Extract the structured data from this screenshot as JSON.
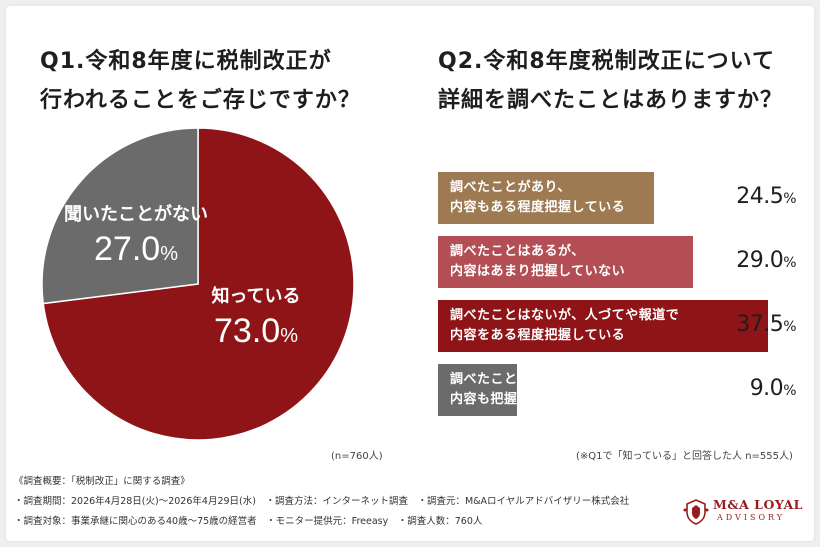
{
  "colors": {
    "dark_red": "#8f1417",
    "mid_red": "#b34e55",
    "gold": "#9e7a52",
    "grey": "#6b6b6b",
    "brand": "#9b1c1f"
  },
  "chart_data": [
    {
      "type": "pie",
      "title": "Q1.令和8年度に税制改正が\n行われることをご存じですか？",
      "slices": [
        {
          "label": "知っている",
          "value": 73.0,
          "value_text": "73.0",
          "unit": "%",
          "color": "#8f1417"
        },
        {
          "label": "聞いたことがない",
          "value": 27.0,
          "value_text": "27.0",
          "unit": "%",
          "color": "#6b6b6b"
        }
      ],
      "note": "(n=760人)"
    },
    {
      "type": "bar",
      "title": "Q2.令和8年度税制改正について\n詳細を調べたことはありますか？",
      "categories": [
        "調べたことがあり、\n内容もある程度把握している",
        "調べたことはあるが、\n内容はあまり把握していない",
        "調べたことはないが、人づてや報道で\n内容をある程度把握している",
        "調べたことはなく、\n内容も把握していない"
      ],
      "values": [
        24.5,
        29.0,
        37.5,
        9.0
      ],
      "value_texts": [
        "24.5",
        "29.0",
        "37.5",
        "9.0"
      ],
      "unit": "%",
      "bar_colors": [
        "#9e7a52",
        "#b34e55",
        "#8f1417",
        "#6b6b6b"
      ],
      "note": "(※Q1で「知っている」と回答した人 n=555人)"
    }
  ],
  "footer": {
    "lines": [
      "《調査概要：「税制改正」に関する調査》",
      "・調査期間：2026年4月28日(火)〜2026年4月29日(水)　・調査方法：インターネット調査　・調査元：M&Aロイヤルアドバイザリー株式会社",
      "・調査対象：事業承継に関心のある40歳〜75歳の経営者　・モニター提供元：Freeasy　・調査人数：760人"
    ]
  },
  "logo": {
    "name": "M&A LOYAL",
    "sub": "ADVISORY",
    "icon": "crest-icon"
  }
}
